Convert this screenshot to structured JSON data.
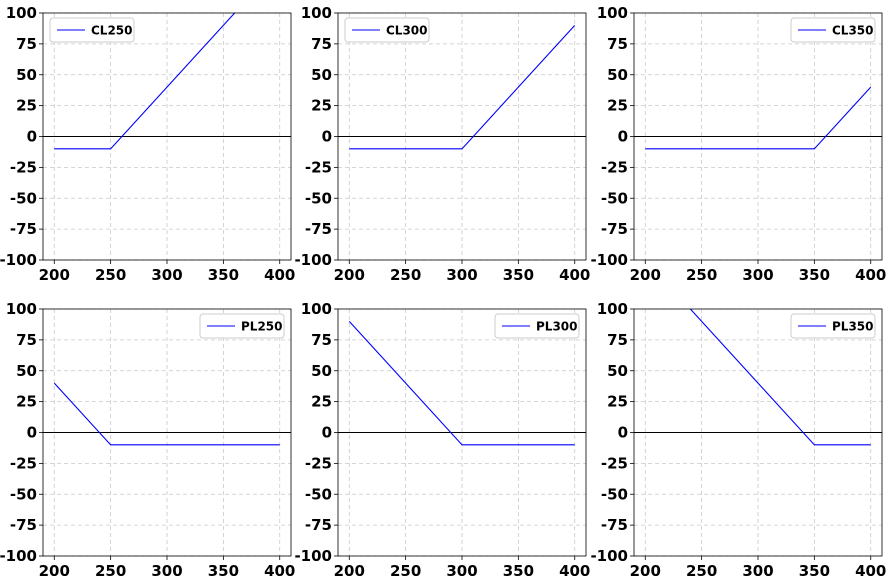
{
  "chart_data": [
    {
      "type": "line",
      "series": [
        {
          "name": "CL250",
          "color": "#0000ff",
          "x": [
            200,
            250,
            400
          ],
          "y": [
            -10,
            -10,
            140
          ]
        }
      ],
      "xlim": [
        190,
        410
      ],
      "ylim": [
        -100,
        100
      ],
      "xticks": [
        200,
        250,
        300,
        350,
        400
      ],
      "yticks": [
        -100,
        -75,
        -50,
        -25,
        0,
        25,
        50,
        75,
        100
      ],
      "grid": true,
      "legend": "top-left",
      "zero_line": true
    },
    {
      "type": "line",
      "series": [
        {
          "name": "CL300",
          "color": "#0000ff",
          "x": [
            200,
            300,
            400
          ],
          "y": [
            -10,
            -10,
            90
          ]
        }
      ],
      "xlim": [
        190,
        410
      ],
      "ylim": [
        -100,
        100
      ],
      "xticks": [
        200,
        250,
        300,
        350,
        400
      ],
      "yticks": [
        -100,
        -75,
        -50,
        -25,
        0,
        25,
        50,
        75,
        100
      ],
      "grid": true,
      "legend": "top-left",
      "zero_line": true
    },
    {
      "type": "line",
      "series": [
        {
          "name": "CL350",
          "color": "#0000ff",
          "x": [
            200,
            350,
            400
          ],
          "y": [
            -10,
            -10,
            40
          ]
        }
      ],
      "xlim": [
        190,
        410
      ],
      "ylim": [
        -100,
        100
      ],
      "xticks": [
        200,
        250,
        300,
        350,
        400
      ],
      "yticks": [
        -100,
        -75,
        -50,
        -25,
        0,
        25,
        50,
        75,
        100
      ],
      "grid": true,
      "legend": "top-right",
      "zero_line": true
    },
    {
      "type": "line",
      "series": [
        {
          "name": "PL250",
          "color": "#0000ff",
          "x": [
            200,
            250,
            400
          ],
          "y": [
            40,
            -10,
            -10
          ]
        }
      ],
      "xlim": [
        190,
        410
      ],
      "ylim": [
        -100,
        100
      ],
      "xticks": [
        200,
        250,
        300,
        350,
        400
      ],
      "yticks": [
        -100,
        -75,
        -50,
        -25,
        0,
        25,
        50,
        75,
        100
      ],
      "grid": true,
      "legend": "top-right",
      "zero_line": true
    },
    {
      "type": "line",
      "series": [
        {
          "name": "PL300",
          "color": "#0000ff",
          "x": [
            200,
            300,
            400
          ],
          "y": [
            90,
            -10,
            -10
          ]
        }
      ],
      "xlim": [
        190,
        410
      ],
      "ylim": [
        -100,
        100
      ],
      "xticks": [
        200,
        250,
        300,
        350,
        400
      ],
      "yticks": [
        -100,
        -75,
        -50,
        -25,
        0,
        25,
        50,
        75,
        100
      ],
      "grid": true,
      "legend": "top-right",
      "zero_line": true
    },
    {
      "type": "line",
      "series": [
        {
          "name": "PL350",
          "color": "#0000ff",
          "x": [
            200,
            350,
            400
          ],
          "y": [
            140,
            -10,
            -10
          ]
        }
      ],
      "xlim": [
        190,
        410
      ],
      "ylim": [
        -100,
        100
      ],
      "xticks": [
        200,
        250,
        300,
        350,
        400
      ],
      "yticks": [
        -100,
        -75,
        -50,
        -25,
        0,
        25,
        50,
        75,
        100
      ],
      "grid": true,
      "legend": "top-right",
      "zero_line": true
    }
  ]
}
